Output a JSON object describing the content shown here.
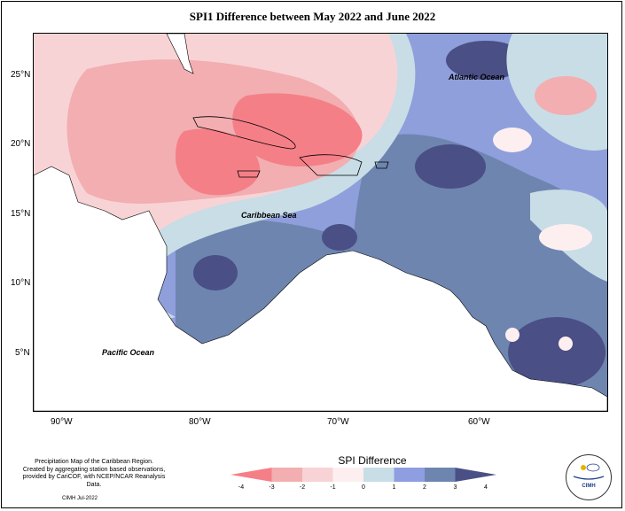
{
  "title": "SPI1 Difference between May 2022 and June 2022",
  "axes": {
    "lat_ticks": [
      "25°N",
      "20°N",
      "15°N",
      "10°N",
      "5°N"
    ],
    "lon_ticks": [
      "90°W",
      "80°W",
      "70°W",
      "60°W"
    ]
  },
  "labels": {
    "atlantic": "Atlantic Ocean",
    "caribbean": "Caribbean Sea",
    "pacific": "Pacific Ocean"
  },
  "legend": {
    "title": "SPI Difference",
    "ticks": [
      "-4",
      "-3",
      "-2",
      "-1",
      "0",
      "1",
      "2",
      "3",
      "4"
    ],
    "colors": [
      "#f57f87",
      "#f2aeb1",
      "#f8d3d6",
      "#fdeff0",
      "#c8dde6",
      "#8e9ee0",
      "#6e85b0",
      "#4a4f85"
    ]
  },
  "footnote": {
    "lines": [
      "Precipitation Map of the Caribbean Region.",
      "Created by aggregating station based observations,",
      "provided by CariCOF, with NCEP/NCAR Reanalysis Data."
    ],
    "credit": "CIMH Jul-2022"
  },
  "logo": {
    "text": "CIMH"
  }
}
